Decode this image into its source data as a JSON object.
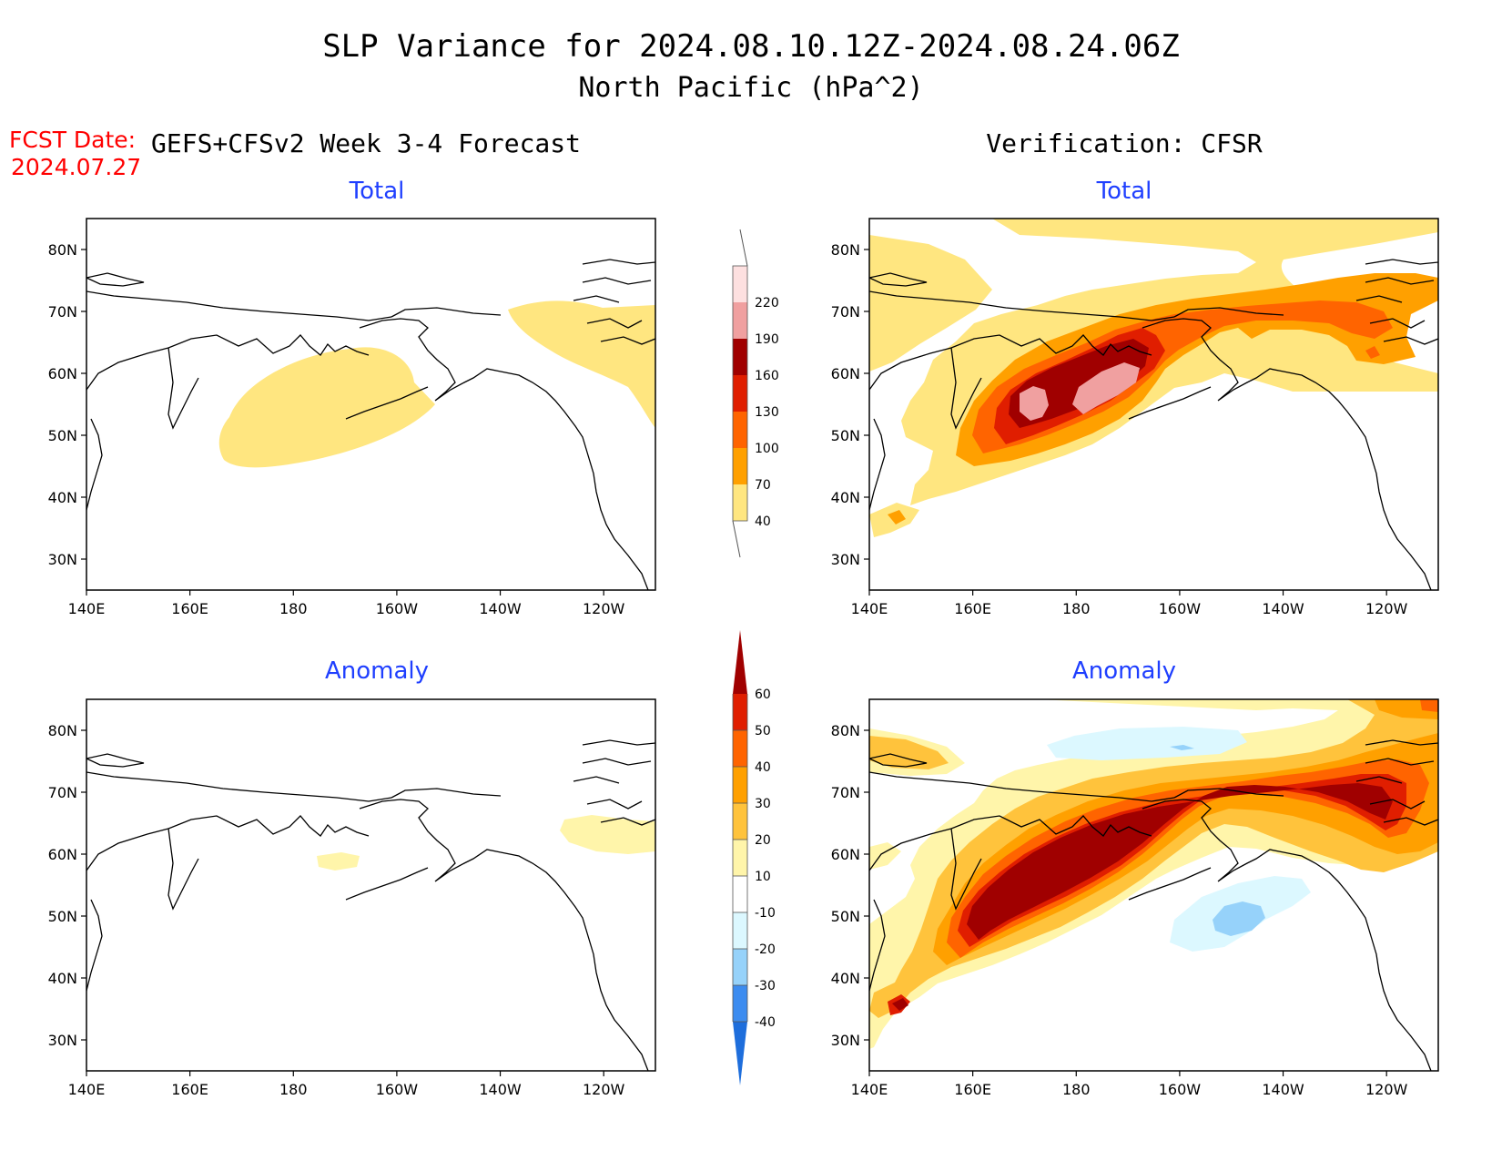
{
  "header": {
    "title_line1": "SLP Variance for 2024.08.10.12Z-2024.08.24.06Z",
    "title_line2": "North Pacific (hPa^2)",
    "fcst_date_label": "FCST Date:",
    "fcst_date_value": "2024.07.27",
    "left_column_title": "GEFS+CFSv2 Week 3-4 Forecast",
    "right_column_title": "Verification: CFSR"
  },
  "panels": [
    {
      "id": "fcst-total",
      "subtitle": "Total"
    },
    {
      "id": "cfsr-total",
      "subtitle": "Total"
    },
    {
      "id": "fcst-anomaly",
      "subtitle": "Anomaly"
    },
    {
      "id": "cfsr-anomaly",
      "subtitle": "Anomaly"
    }
  ],
  "axes": {
    "x_ticks": [
      "140E",
      "160E",
      "180",
      "160W",
      "140W",
      "120W"
    ],
    "x_tick_lons": [
      140,
      160,
      180,
      200,
      220,
      240
    ],
    "y_ticks": [
      "30N",
      "40N",
      "50N",
      "60N",
      "70N",
      "80N"
    ],
    "y_tick_lats": [
      30,
      40,
      50,
      60,
      70,
      80
    ],
    "lon_range": [
      140,
      250
    ],
    "lat_range": [
      25,
      85
    ]
  },
  "colorbars": {
    "total": {
      "labels": [
        "40",
        "70",
        "100",
        "130",
        "160",
        "190",
        "220"
      ],
      "colors": [
        "#ffe680",
        "#ffa000",
        "#ff6400",
        "#e01e00",
        "#a00000",
        "#f0a0a0",
        "#fde0e0"
      ]
    },
    "anomaly": {
      "labels": [
        "-40",
        "-30",
        "-20",
        "-10",
        "10",
        "20",
        "30",
        "40",
        "50",
        "60"
      ],
      "colors": [
        "#1e6edc",
        "#3c8cf0",
        "#96d2fa",
        "#dcf8ff",
        "#ffffff",
        "#fff5aa",
        "#ffc33c",
        "#ffa000",
        "#ff6400",
        "#e01e00",
        "#a00000"
      ]
    }
  },
  "colors": {
    "title": "#000000",
    "fcst_date": "#ff0000",
    "subtitle": "#1f3fff",
    "coast": "#000000"
  }
}
